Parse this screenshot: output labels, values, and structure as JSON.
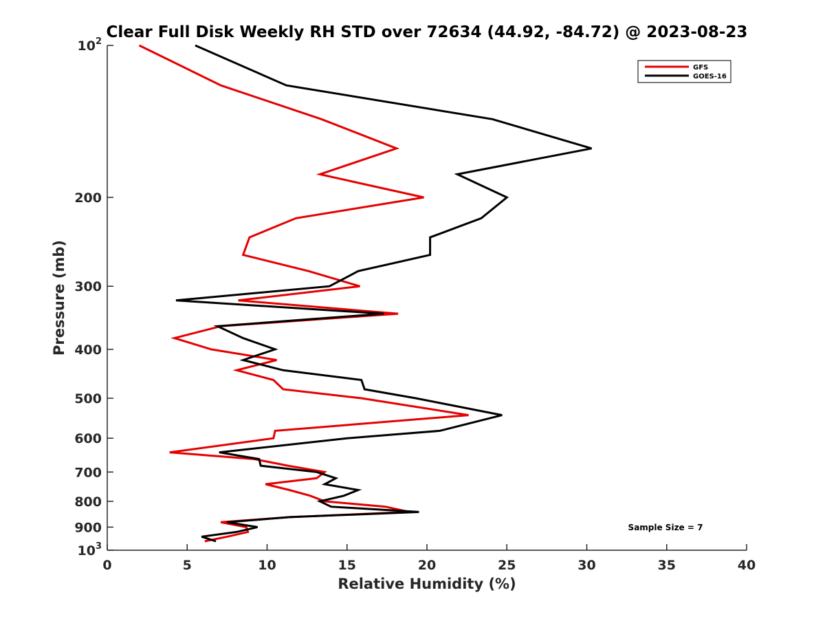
{
  "chart_data": {
    "type": "line",
    "title": "Clear Full Disk Weekly RH STD over 72634 (44.92, -84.72) @ 2023-08-23",
    "xlabel": "Relative Humidity (%)",
    "ylabel": "Pressure (mb)",
    "xlim": [
      0,
      40
    ],
    "ylim": [
      100,
      1000
    ],
    "y_scale": "log",
    "y_reversed": true,
    "grid": false,
    "x_ticks": [
      0,
      5,
      10,
      15,
      20,
      25,
      30,
      35,
      40
    ],
    "x_tick_labels": [
      "0",
      "5",
      "10",
      "15",
      "20",
      "25",
      "30",
      "35",
      "40"
    ],
    "y_ticks": [
      100,
      200,
      300,
      400,
      500,
      600,
      700,
      800,
      900,
      1000
    ],
    "y_tick_labels": [
      {
        "base": "10",
        "sup": "2"
      },
      {
        "base": "200",
        "sup": ""
      },
      {
        "base": "300",
        "sup": ""
      },
      {
        "base": "400",
        "sup": ""
      },
      {
        "base": "500",
        "sup": ""
      },
      {
        "base": "600",
        "sup": ""
      },
      {
        "base": "700",
        "sup": ""
      },
      {
        "base": "800",
        "sup": ""
      },
      {
        "base": "900",
        "sup": ""
      },
      {
        "base": "10",
        "sup": "3"
      }
    ],
    "pressure_levels": [
      100,
      120,
      140,
      160,
      180,
      200,
      220,
      240,
      260,
      280,
      300,
      320,
      340,
      360,
      380,
      400,
      420,
      440,
      460,
      480,
      500,
      540,
      580,
      600,
      640,
      660,
      680,
      700,
      720,
      740,
      760,
      780,
      800,
      820,
      840,
      860,
      880,
      900,
      920,
      940,
      960
    ],
    "series": [
      {
        "name": "GFS",
        "color": "#e50000",
        "values": [
          2.0,
          7.1,
          13.4,
          18.1,
          13.3,
          19.8,
          11.8,
          8.9,
          8.5,
          12.6,
          15.8,
          8.2,
          18.2,
          7.1,
          4.2,
          6.5,
          10.6,
          8.1,
          10.4,
          11.0,
          15.9,
          22.6,
          10.5,
          10.4,
          3.9,
          9.2,
          11.3,
          13.6,
          13.1,
          9.9,
          11.4,
          12.7,
          13.6,
          17.4,
          18.9,
          11.4,
          7.1,
          8.7,
          8.8,
          7.5,
          6.1
        ]
      },
      {
        "name": "GOES-16",
        "color": "#000000",
        "values": [
          5.5,
          11.2,
          24.1,
          30.3,
          21.9,
          25.0,
          23.4,
          20.2,
          20.2,
          15.7,
          13.9,
          4.3,
          17.3,
          6.9,
          8.5,
          10.5,
          8.5,
          11.0,
          15.9,
          16.1,
          19.3,
          24.7,
          20.8,
          15.0,
          7.0,
          9.5,
          9.6,
          13.1,
          14.3,
          13.6,
          15.7,
          14.8,
          13.3,
          14.0,
          19.5,
          11.4,
          7.5,
          9.4,
          8.1,
          5.9,
          6.8
        ]
      }
    ],
    "legend": {
      "placement": "top-right",
      "entries": [
        "GFS",
        "GOES-16"
      ]
    },
    "annotations": [
      "Sample Size = 7"
    ]
  }
}
